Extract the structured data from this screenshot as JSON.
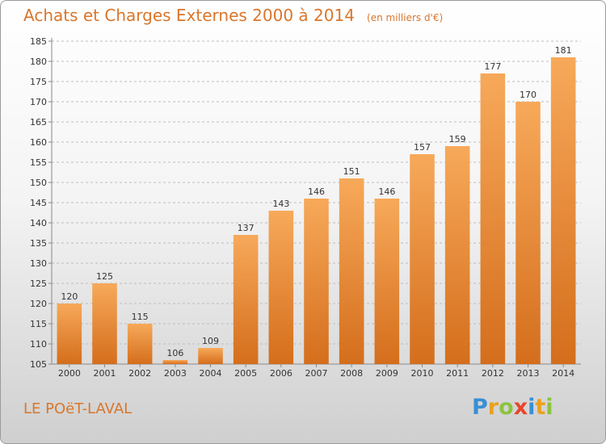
{
  "header": {
    "title": "Achats et Charges Externes 2000 à 2014",
    "subtitle": "(en milliers d'€)"
  },
  "footer": {
    "commune": "LE POëT-LAVAL",
    "logo": {
      "text": "Proxiti",
      "letters": [
        "P",
        "r",
        "o",
        "x",
        "i",
        "t",
        "i"
      ],
      "colors": [
        "#3a8fd6",
        "#e8a21c",
        "#8bc43f",
        "#e8452c",
        "#3a8fd6",
        "#e8a21c",
        "#8bc43f"
      ]
    }
  },
  "chart_data": {
    "type": "bar",
    "title": "Achats et Charges Externes 2000 à 2014",
    "subtitle": "(en milliers d'€)",
    "categories": [
      "2000",
      "2001",
      "2002",
      "2003",
      "2004",
      "2005",
      "2006",
      "2007",
      "2008",
      "2009",
      "2010",
      "2011",
      "2012",
      "2013",
      "2014"
    ],
    "values": [
      120,
      125,
      115,
      106,
      109,
      137,
      143,
      146,
      151,
      146,
      157,
      159,
      177,
      170,
      181
    ],
    "ylim": [
      105,
      185
    ],
    "yticks": [
      105,
      110,
      115,
      120,
      125,
      130,
      135,
      140,
      145,
      150,
      155,
      160,
      165,
      170,
      175,
      180,
      185
    ],
    "grid": true,
    "legend": "none",
    "colors": {
      "bar_top": "#f7a95a",
      "bar_bottom": "#d46e1c",
      "grid": "#bdbdbd",
      "text": "#d9762c",
      "label": "#333333"
    }
  }
}
